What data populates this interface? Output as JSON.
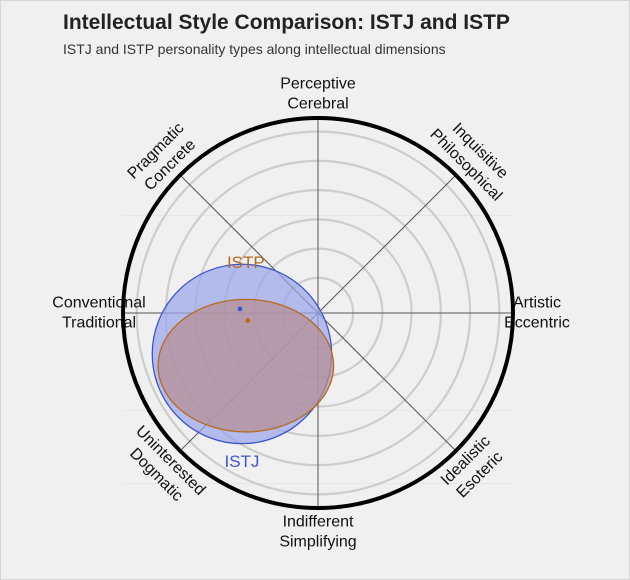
{
  "title": "Intellectual Style Comparison: ISTJ and ISTP",
  "subtitle": "ISTJ and ISTP personality types along intellectual dimensions",
  "chart_data": {
    "type": "scatter",
    "title": "Intellectual Style Comparison: ISTJ and ISTP",
    "subtitle": "ISTJ and ISTP personality types along intellectual dimensions",
    "axes": [
      {
        "label": [
          "Perceptive",
          "Cerebral"
        ],
        "angle_deg": 0
      },
      {
        "label": [
          "Inquisitive",
          "Philosophical"
        ],
        "angle_deg": 45
      },
      {
        "label": [
          "Artistic",
          "Eccentric"
        ],
        "angle_deg": 90
      },
      {
        "label": [
          "Idealistic",
          "Esoteric"
        ],
        "angle_deg": 135
      },
      {
        "label": [
          "Indifferent",
          "Simplifying"
        ],
        "angle_deg": 180
      },
      {
        "label": [
          "Uninterested",
          "Dogmatic"
        ],
        "angle_deg": 225
      },
      {
        "label": [
          "Conventional",
          "Traditional"
        ],
        "angle_deg": 270
      },
      {
        "label": [
          "Pragmatic",
          "Concrete"
        ],
        "angle_deg": 315
      }
    ],
    "rings": 6,
    "xlim": [
      -1,
      1
    ],
    "ylim": [
      -1,
      1
    ],
    "series": [
      {
        "name": "ISTJ",
        "center": [
          -0.39,
          -0.21
        ],
        "radius": 0.46,
        "color": "#3d56c9",
        "fill": "#9aa6ea"
      },
      {
        "name": "ISTP",
        "center": [
          -0.37,
          -0.27
        ],
        "rx": 0.45,
        "ry": 0.34,
        "color": "#b7691e",
        "fill": "#b48f95"
      }
    ],
    "grid": true,
    "legend": "none"
  }
}
